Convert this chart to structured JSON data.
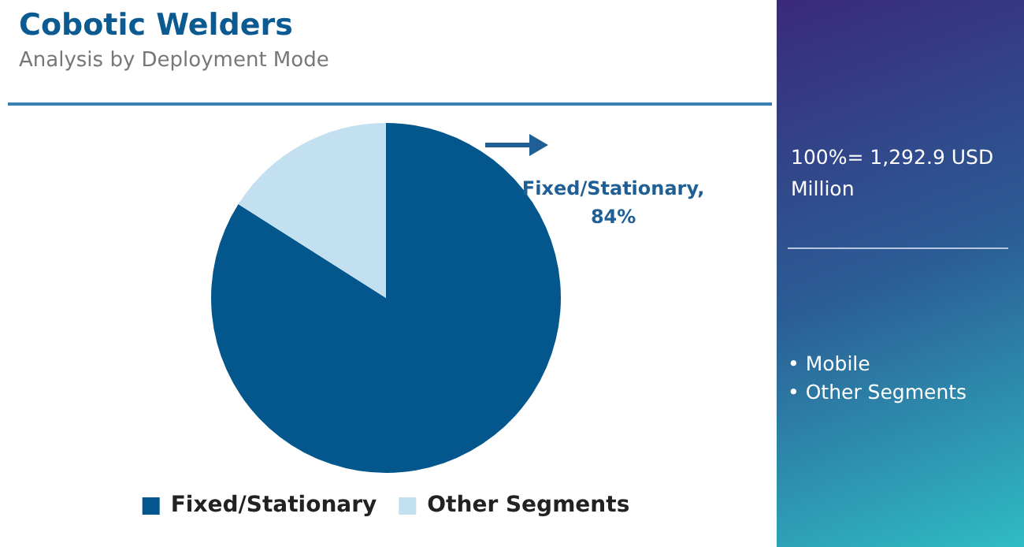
{
  "chart_data": {
    "type": "pie",
    "title": "Cobotic Welders",
    "subtitle": "Analysis by Deployment Mode",
    "categories": [
      "Fixed/Stationary",
      "Other Segments"
    ],
    "values": [
      84,
      16
    ],
    "colors": [
      "#04578c",
      "#c3e0f0"
    ],
    "value_labels": [
      "Fixed/Stationary, 84%",
      null
    ],
    "legend": "bottom",
    "annotations": [
      "100%= 1,292.9 USD Million",
      "• Mobile",
      "• Other Segments"
    ]
  }
}
